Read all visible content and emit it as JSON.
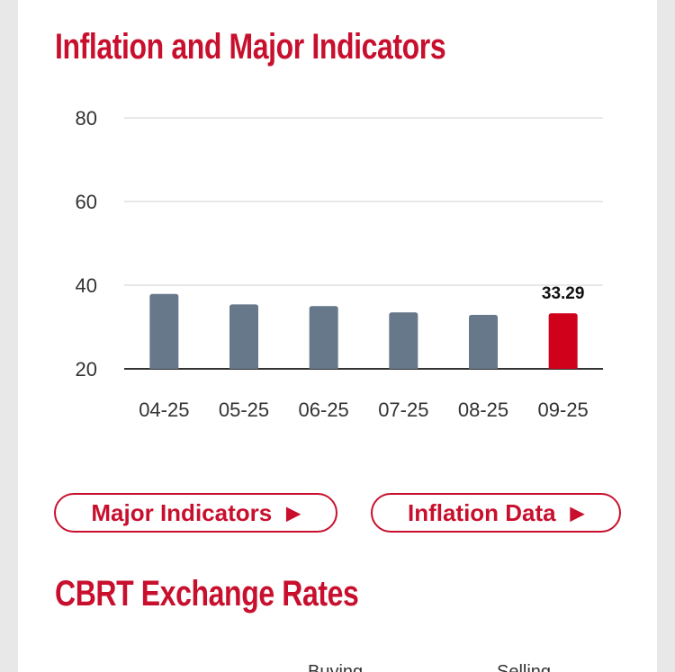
{
  "section_inflation": {
    "title": "Inflation and Major Indicators"
  },
  "chart_data": {
    "type": "bar",
    "categories": [
      "04-25",
      "05-25",
      "06-25",
      "07-25",
      "08-25",
      "09-25"
    ],
    "values": [
      37.9,
      35.4,
      35.0,
      33.5,
      32.9,
      33.29
    ],
    "highlight_index": 5,
    "highlight_label": "33.29",
    "ylim": [
      20,
      80
    ],
    "yticks": [
      "20",
      "40",
      "60",
      "80"
    ],
    "grid": true,
    "colors": {
      "bar": "#66788a",
      "highlight": "#d0021b",
      "grid": "#e0e0e0",
      "axis": "#333333"
    }
  },
  "buttons": {
    "major_indicators": "Major Indicators",
    "inflation_data": "Inflation Data",
    "arrow_icon": "▶"
  },
  "section_rates": {
    "title": "CBRT Exchange Rates",
    "col_buying": "Buying",
    "col_selling": "Selling"
  }
}
